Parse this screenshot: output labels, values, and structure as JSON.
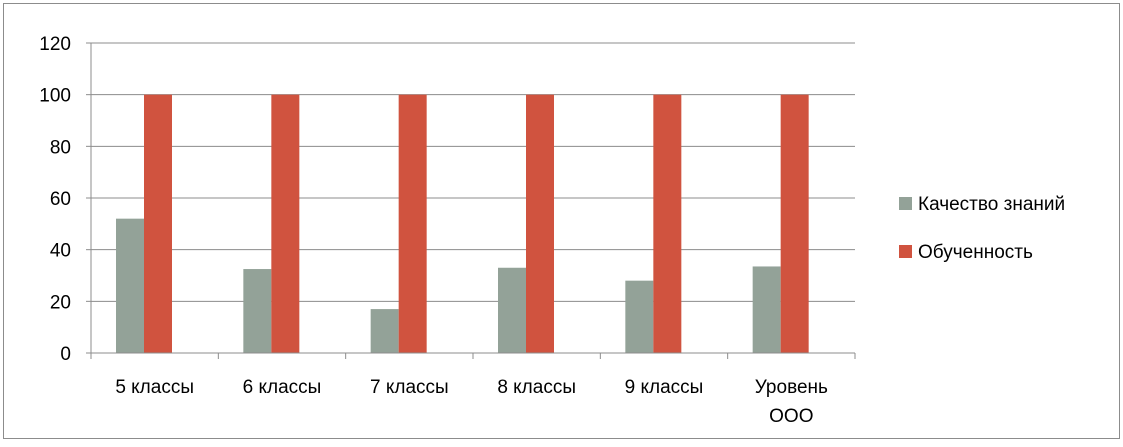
{
  "chart_data": {
    "type": "bar",
    "categories": [
      [
        "5 классы"
      ],
      [
        "6 классы"
      ],
      [
        "7 классы"
      ],
      [
        "8 классы"
      ],
      [
        "9 классы"
      ],
      [
        "Уровень",
        "ООО"
      ]
    ],
    "series": [
      {
        "name": "Качество знаний",
        "color": "#93a298",
        "values": [
          52,
          32.5,
          17,
          33,
          28,
          33.5
        ]
      },
      {
        "name": "Обученность",
        "color": "#d0533f",
        "values": [
          100,
          100,
          100,
          100,
          100,
          100
        ]
      }
    ],
    "ylim": [
      0,
      120
    ],
    "yticks": [
      0,
      20,
      40,
      60,
      80,
      100,
      120
    ],
    "grid": true,
    "legend_position": "right"
  }
}
